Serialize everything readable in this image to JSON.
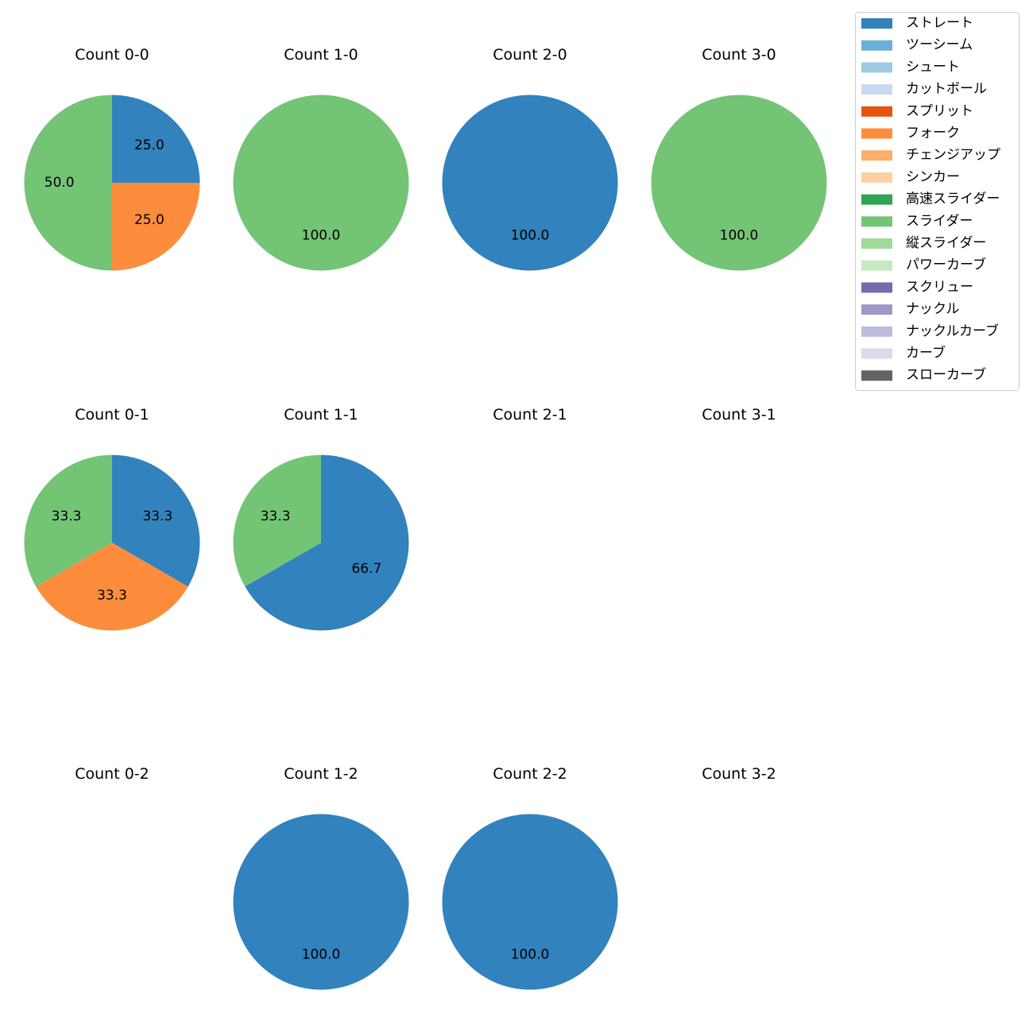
{
  "legend": {
    "entries": [
      {
        "label": "ストレート",
        "color": "#3182bd"
      },
      {
        "label": "ツーシーム",
        "color": "#6baed6"
      },
      {
        "label": "シュート",
        "color": "#9ecae1"
      },
      {
        "label": "カットボール",
        "color": "#c6dbef"
      },
      {
        "label": "スプリット",
        "color": "#e6550d"
      },
      {
        "label": "フォーク",
        "color": "#fd8d3c"
      },
      {
        "label": "チェンジアップ",
        "color": "#fdae6b"
      },
      {
        "label": "シンカー",
        "color": "#fdd0a2"
      },
      {
        "label": "高速スライダー",
        "color": "#31a354"
      },
      {
        "label": "スライダー",
        "color": "#74c476"
      },
      {
        "label": "縦スライダー",
        "color": "#a1d99b"
      },
      {
        "label": "パワーカーブ",
        "color": "#c7e9c0"
      },
      {
        "label": "スクリュー",
        "color": "#756bb1"
      },
      {
        "label": "ナックル",
        "color": "#9e9ac8"
      },
      {
        "label": "ナックルカーブ",
        "color": "#bcbddc"
      },
      {
        "label": "カーブ",
        "color": "#dadaeb"
      },
      {
        "label": "スローカーブ",
        "color": "#636363"
      }
    ]
  },
  "chart_data": [
    {
      "type": "pie",
      "title": "Count 0-0",
      "slices": [
        {
          "name": "ストレート",
          "value": 25.0,
          "label": "25.0"
        },
        {
          "name": "フォーク",
          "value": 25.0,
          "label": "25.0"
        },
        {
          "name": "スライダー",
          "value": 50.0,
          "label": "50.0"
        }
      ]
    },
    {
      "type": "pie",
      "title": "Count 1-0",
      "slices": [
        {
          "name": "スライダー",
          "value": 100.0,
          "label": "100.0"
        }
      ]
    },
    {
      "type": "pie",
      "title": "Count 2-0",
      "slices": [
        {
          "name": "ストレート",
          "value": 100.0,
          "label": "100.0"
        }
      ]
    },
    {
      "type": "pie",
      "title": "Count 3-0",
      "slices": [
        {
          "name": "スライダー",
          "value": 100.0,
          "label": "100.0"
        }
      ]
    },
    {
      "type": "pie",
      "title": "Count 0-1",
      "slices": [
        {
          "name": "ストレート",
          "value": 33.3,
          "label": "33.3"
        },
        {
          "name": "フォーク",
          "value": 33.3,
          "label": "33.3"
        },
        {
          "name": "スライダー",
          "value": 33.3,
          "label": "33.3"
        }
      ]
    },
    {
      "type": "pie",
      "title": "Count 1-1",
      "slices": [
        {
          "name": "ストレート",
          "value": 66.7,
          "label": "66.7"
        },
        {
          "name": "スライダー",
          "value": 33.3,
          "label": "33.3"
        }
      ]
    },
    {
      "type": "pie",
      "title": "Count 2-1",
      "slices": []
    },
    {
      "type": "pie",
      "title": "Count 3-1",
      "slices": []
    },
    {
      "type": "pie",
      "title": "Count 0-2",
      "slices": []
    },
    {
      "type": "pie",
      "title": "Count 1-2",
      "slices": [
        {
          "name": "ストレート",
          "value": 100.0,
          "label": "100.0"
        }
      ]
    },
    {
      "type": "pie",
      "title": "Count 2-2",
      "slices": [
        {
          "name": "ストレート",
          "value": 100.0,
          "label": "100.0"
        }
      ]
    },
    {
      "type": "pie",
      "title": "Count 3-2",
      "slices": []
    }
  ]
}
